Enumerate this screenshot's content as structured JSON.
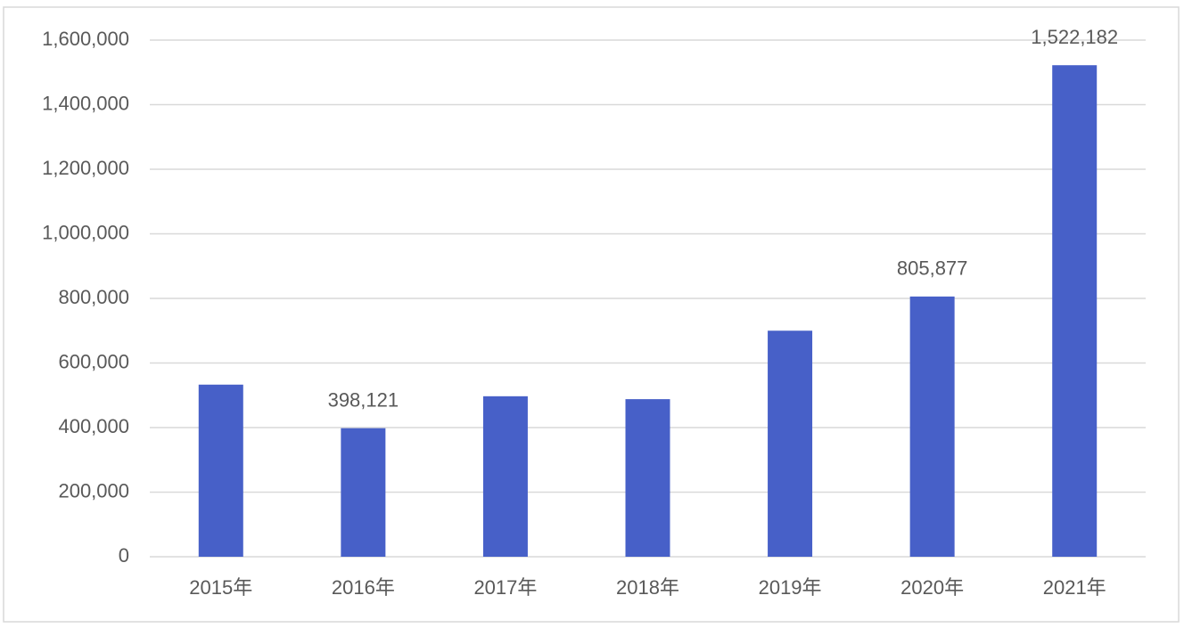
{
  "chart_data": {
    "type": "bar",
    "categories": [
      "2015年",
      "2016年",
      "2017年",
      "2018年",
      "2019年",
      "2020年",
      "2021年"
    ],
    "values": [
      533000,
      398121,
      497000,
      488000,
      700000,
      805877,
      1522182
    ],
    "value_labels": [
      null,
      "398,121",
      null,
      null,
      null,
      "805,877",
      "1,522,182"
    ],
    "color": "#4760c8",
    "ylim": [
      0,
      1600000
    ],
    "yticks": [
      0,
      {
        "value": 200000,
        "label": "200,000"
      },
      {
        "value": 400000,
        "label": "400,000"
      },
      {
        "value": 600000,
        "label": "600,000"
      },
      {
        "value": 800000,
        "label": "800,000"
      },
      {
        "value": 1000000,
        "label": "1,000,000"
      },
      {
        "value": 1200000,
        "label": "1,200,000"
      },
      {
        "value": 1400000,
        "label": "1,400,000"
      },
      {
        "value": 1600000,
        "label": "1,600,000"
      }
    ],
    "grid": true
  }
}
